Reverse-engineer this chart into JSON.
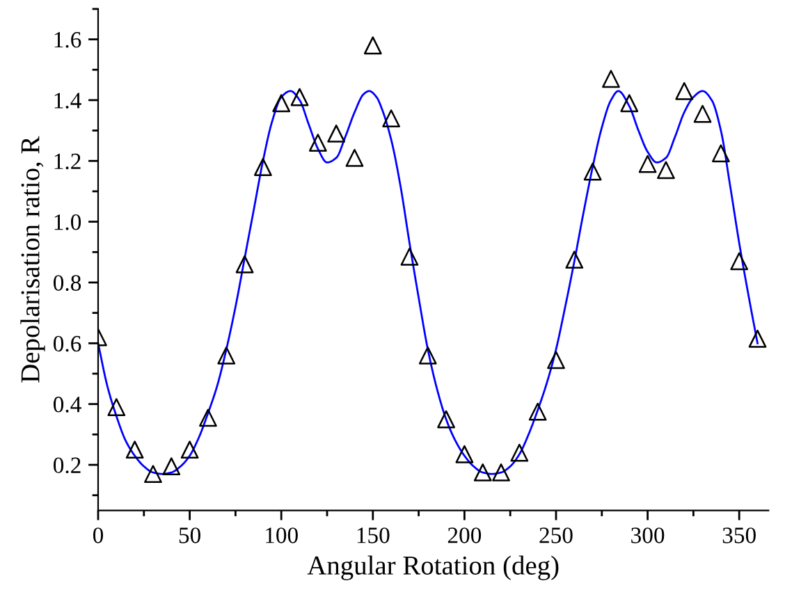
{
  "chart_data": {
    "type": "scatter",
    "xlabel": "Angular Rotation (deg)",
    "ylabel": "Depolarisation ratio, R",
    "xlim": [
      0,
      366
    ],
    "ylim": [
      0.05,
      1.7
    ],
    "xticks": [
      0,
      50,
      100,
      150,
      200,
      250,
      300,
      350
    ],
    "yticks": [
      0.2,
      0.4,
      0.6,
      0.8,
      {
        "value": 1.0,
        "label": "1.0"
      },
      1.2,
      1.4,
      1.6
    ],
    "grid": false,
    "legend": false,
    "series": [
      {
        "type": "line",
        "color": "#0000ff",
        "marker": "none",
        "line_style": "solid",
        "x": [
          0,
          5,
          10,
          15,
          20,
          25,
          30,
          35,
          40,
          45,
          50,
          55,
          60,
          65,
          70,
          75,
          80,
          85,
          90,
          95,
          100,
          105,
          110,
          115,
          120,
          125,
          130,
          135,
          140,
          145,
          148,
          152,
          155,
          160,
          165,
          170,
          175,
          180,
          185,
          190,
          195,
          200,
          205,
          210,
          215,
          220,
          225,
          230,
          235,
          240,
          245,
          250,
          255,
          260,
          265,
          270,
          275,
          280,
          284,
          290,
          295,
          300,
          305,
          310,
          315,
          320,
          325,
          330,
          335,
          340,
          345,
          350,
          355,
          360
        ],
        "values": [
          0.6,
          0.46,
          0.36,
          0.28,
          0.23,
          0.195,
          0.175,
          0.17,
          0.175,
          0.195,
          0.23,
          0.29,
          0.37,
          0.46,
          0.58,
          0.72,
          0.88,
          1.04,
          1.2,
          1.33,
          1.41,
          1.43,
          1.4,
          1.32,
          1.24,
          1.195,
          1.21,
          1.28,
          1.36,
          1.42,
          1.43,
          1.41,
          1.37,
          1.27,
          1.12,
          0.93,
          0.75,
          0.58,
          0.45,
          0.35,
          0.28,
          0.23,
          0.195,
          0.175,
          0.17,
          0.175,
          0.195,
          0.235,
          0.3,
          0.38,
          0.47,
          0.58,
          0.72,
          0.87,
          1.03,
          1.18,
          1.31,
          1.4,
          1.43,
          1.38,
          1.3,
          1.23,
          1.195,
          1.21,
          1.28,
          1.36,
          1.41,
          1.43,
          1.4,
          1.3,
          1.12,
          0.93,
          0.76,
          0.6
        ]
      },
      {
        "type": "scatter",
        "color": "#000000",
        "marker": "triangle",
        "x": [
          0,
          10,
          20,
          30,
          40,
          50,
          60,
          70,
          80,
          90,
          100,
          110,
          120,
          130,
          140,
          150,
          160,
          170,
          180,
          190,
          200,
          210,
          220,
          230,
          240,
          250,
          260,
          270,
          280,
          290,
          300,
          310,
          320,
          330,
          340,
          350,
          360
        ],
        "values": [
          0.62,
          0.39,
          0.25,
          0.17,
          0.195,
          0.25,
          0.355,
          0.56,
          0.86,
          1.18,
          1.39,
          1.41,
          1.26,
          1.29,
          1.21,
          1.58,
          1.34,
          0.885,
          0.56,
          0.35,
          0.235,
          0.175,
          0.175,
          0.24,
          0.375,
          0.545,
          0.875,
          1.165,
          1.47,
          1.39,
          1.19,
          1.17,
          1.43,
          1.355,
          1.225,
          0.87,
          0.615
        ]
      }
    ]
  }
}
